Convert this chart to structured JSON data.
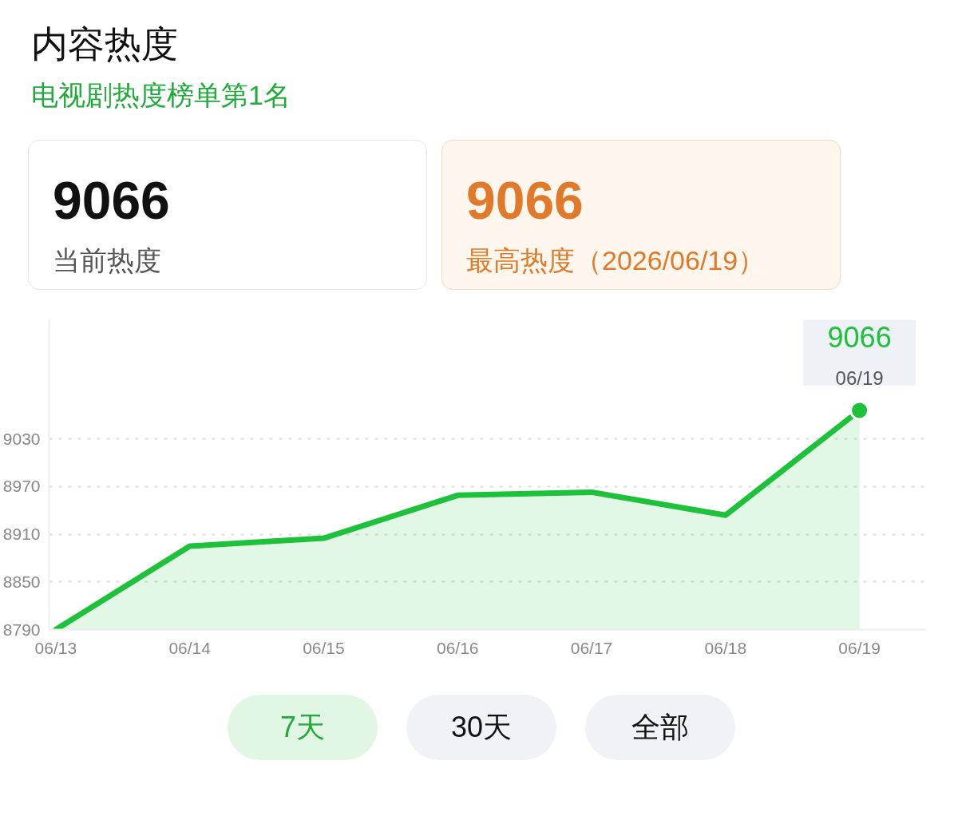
{
  "chart_data": {
    "type": "area",
    "title": "内容热度",
    "subtitle": "电视剧热度榜单第1名",
    "categories": [
      "06/13",
      "06/14",
      "06/15",
      "06/16",
      "06/17",
      "06/18",
      "06/19"
    ],
    "series": [
      {
        "color": "#1ec23a",
        "values": [
          8790,
          8895,
          8905,
          8959,
          8963,
          8934,
          9066
        ]
      }
    ],
    "ylim": [
      8790,
      9180
    ],
    "yticks": [
      8790,
      8850,
      8910,
      8970,
      9030
    ],
    "grid": "y",
    "marker": "none",
    "line_style": "solid",
    "annotations": [
      "9066",
      "当前热度",
      "9066",
      "最高热度（2026/06/19）",
      "7天",
      "30天",
      "全部",
      {
        "text": "9066",
        "x": "06/19",
        "y": 9066
      },
      "06/19"
    ]
  }
}
